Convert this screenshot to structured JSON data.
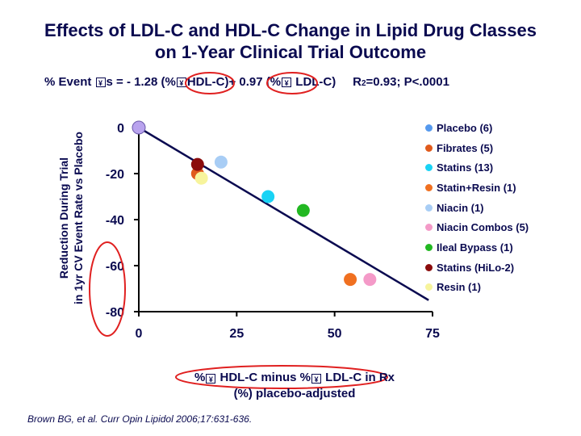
{
  "title_line1": "Effects of LDL-C and HDL-C Change in Lipid Drug Classes",
  "title_line2": "on 1-Year Clinical Trial Outcome",
  "equation": {
    "part1": "% Event ",
    "part2": "s = ",
    "coef1": "- 1.28",
    "part3": " (%",
    "part4": "HDL-C)",
    "coef2": "+ 0.97",
    "part5": " (%",
    "part6": " LDL-C)     R",
    "sup": "2",
    "part7": "=0.93; P<.0001",
    "delta_glyph": "¥"
  },
  "chart_data": {
    "type": "scatter",
    "xlabel_line1_a": "%",
    "xlabel_line1_b": " HDL-C minus %",
    "xlabel_line1_c": " LDL-C in Rx",
    "xlabel_line2": "(%) placebo-adjusted",
    "ylabel_line1": "Reduction During Trial",
    "ylabel_line2": "in 1yr CV Event Rate vs Placebo",
    "xlim": [
      0,
      75
    ],
    "ylim": [
      -80,
      0
    ],
    "xticks": [
      0,
      25,
      50,
      75
    ],
    "yticks": [
      0,
      -20,
      -40,
      -60,
      -80
    ],
    "xtick_labels": [
      "0",
      "25",
      "50",
      "75"
    ],
    "ytick_labels": [
      "0",
      "-20",
      "-40",
      "-60",
      "-80"
    ],
    "fit_line": {
      "x": [
        0,
        74
      ],
      "y": [
        0,
        -75
      ]
    },
    "legend_position": "right",
    "series": [
      {
        "name": "Placebo (6)",
        "color": "#5599ee",
        "points": []
      },
      {
        "name": "Fibrates (5)",
        "color": "#e05a1c",
        "points": [
          [
            15,
            -20
          ]
        ]
      },
      {
        "name": "Statins (13)",
        "color": "#19d3f5",
        "points": [
          [
            33,
            -30
          ]
        ]
      },
      {
        "name": "Statin+Resin (1)",
        "color": "#f07020",
        "points": [
          [
            54,
            -66
          ]
        ]
      },
      {
        "name": "Niacin (1)",
        "color": "#a8cdf5",
        "points": [
          [
            21,
            -15
          ]
        ]
      },
      {
        "name": "Niacin Combos (5)",
        "color": "#f49ac8",
        "points": [
          [
            59,
            -66
          ]
        ]
      },
      {
        "name": "Ileal Bypass (1)",
        "color": "#22b822",
        "points": [
          [
            42,
            -36
          ]
        ]
      },
      {
        "name": "Statins (HiLo-2)",
        "color": "#8b0c0c",
        "points": [
          [
            15,
            -16
          ]
        ]
      },
      {
        "name": "Resin (1)",
        "color": "#f7f49c",
        "points": [
          [
            16,
            -22
          ]
        ]
      }
    ],
    "origin_point": {
      "x": 0,
      "y": 0,
      "color": "#b9a3ee"
    }
  },
  "citation": "Brown BG, et al. Curr Opin Lipidol 2006;17:631-636."
}
